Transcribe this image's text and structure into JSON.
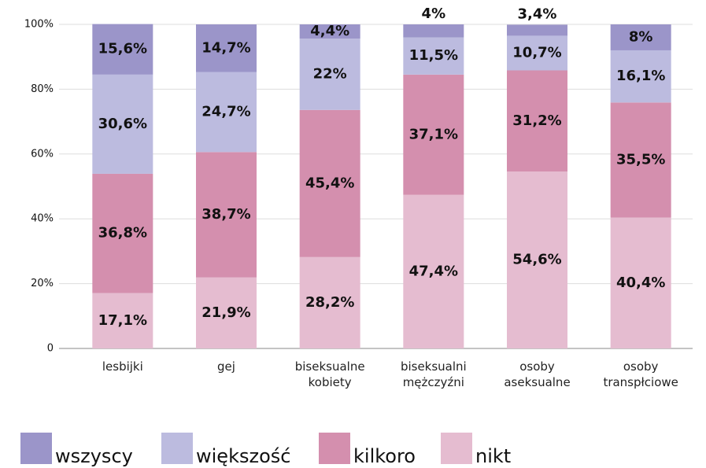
{
  "chart_data": {
    "type": "bar",
    "stacked": true,
    "categories": [
      "lesbijki",
      "gej",
      "biseksualne kobiety",
      "biseksualni mężczyźni",
      "osoby aseksualne",
      "osoby transpłciowe"
    ],
    "series": [
      {
        "name": "wszyscy",
        "color": "#9b95c9",
        "values": [
          15.6,
          14.7,
          4.4,
          4,
          3.4,
          8
        ],
        "value_labels": [
          "15,6%",
          "14,7%",
          "4,4%",
          "4%",
          "3,4%",
          "8%"
        ]
      },
      {
        "name": "większość",
        "color": "#bcbbdf",
        "values": [
          30.6,
          24.7,
          22,
          11.5,
          10.7,
          16.1
        ],
        "value_labels": [
          "30,6%",
          "24,7%",
          "22%",
          "11,5%",
          "10,7%",
          "16,1%"
        ]
      },
      {
        "name": "kilkoro",
        "color": "#d48fae",
        "values": [
          36.8,
          38.7,
          45.4,
          37.1,
          31.2,
          35.5
        ],
        "value_labels": [
          "36,8%",
          "38,7%",
          "45,4%",
          "37,1%",
          "31,2%",
          "35,5%"
        ]
      },
      {
        "name": "nikt",
        "color": "#e5bcd0",
        "values": [
          17.1,
          21.9,
          28.2,
          47.4,
          54.6,
          40.4
        ],
        "value_labels": [
          "17,1%",
          "21,9%",
          "28,2%",
          "47,4%",
          "54,6%",
          "40,4%"
        ]
      }
    ],
    "ylim": [
      0,
      100
    ],
    "yticks": [
      0,
      {
        "value": 20,
        "label": "20%"
      },
      {
        "value": 40,
        "label": "40%"
      },
      {
        "value": 60,
        "label": "60%"
      },
      {
        "value": 80,
        "label": "80%"
      },
      {
        "value": 100,
        "label": "100%"
      }
    ],
    "grid": true,
    "legend": "bottom"
  }
}
